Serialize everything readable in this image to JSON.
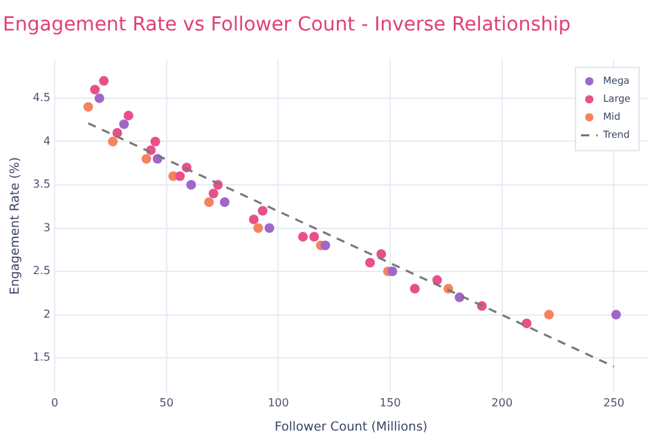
{
  "chart_data": {
    "type": "scatter",
    "title": "Engagement Rate vs Follower Count - Inverse Relationship",
    "xlabel": "Follower Count (Millions)",
    "ylabel": "Engagement Rate (%)",
    "xlim": [
      0,
      265
    ],
    "xticks": [
      0,
      50,
      100,
      150,
      200,
      250
    ],
    "ylim": [
      1.1,
      4.95
    ],
    "yticks": [
      1.5,
      2,
      2.5,
      3,
      3.5,
      4,
      4.5
    ],
    "grid": true,
    "legend": "top right",
    "marker": "circle",
    "series": [
      {
        "name": "Mega",
        "color": "#a066c8",
        "x": [
          20,
          31,
          46,
          61,
          76,
          96,
          121,
          151,
          181,
          251
        ],
        "values": [
          4.5,
          4.2,
          3.8,
          3.5,
          3.3,
          3.0,
          2.8,
          2.5,
          2.2,
          2.0
        ]
      },
      {
        "name": "Large",
        "color": "#e8508a",
        "x": [
          18,
          22,
          28,
          33,
          43,
          45,
          56,
          59,
          71,
          73,
          89,
          93,
          111,
          116,
          141,
          146,
          161,
          171,
          191,
          211
        ],
        "values": [
          4.6,
          4.7,
          4.1,
          4.3,
          3.9,
          4.0,
          3.6,
          3.7,
          3.4,
          3.5,
          3.1,
          3.2,
          2.9,
          2.9,
          2.6,
          2.7,
          2.3,
          2.4,
          2.1,
          1.9
        ]
      },
      {
        "name": "Mid",
        "color": "#f4845f",
        "x": [
          15,
          26,
          41,
          53,
          69,
          91,
          119,
          149,
          176,
          221
        ],
        "values": [
          4.4,
          4.0,
          3.8,
          3.6,
          3.3,
          3.0,
          2.8,
          2.5,
          2.3,
          2.0
        ]
      },
      {
        "name": "Trend",
        "type": "line",
        "color": "#777777",
        "line_style": "dashed",
        "marker": "none",
        "x": [
          15,
          250
        ],
        "values": [
          4.21,
          1.4
        ]
      }
    ]
  }
}
